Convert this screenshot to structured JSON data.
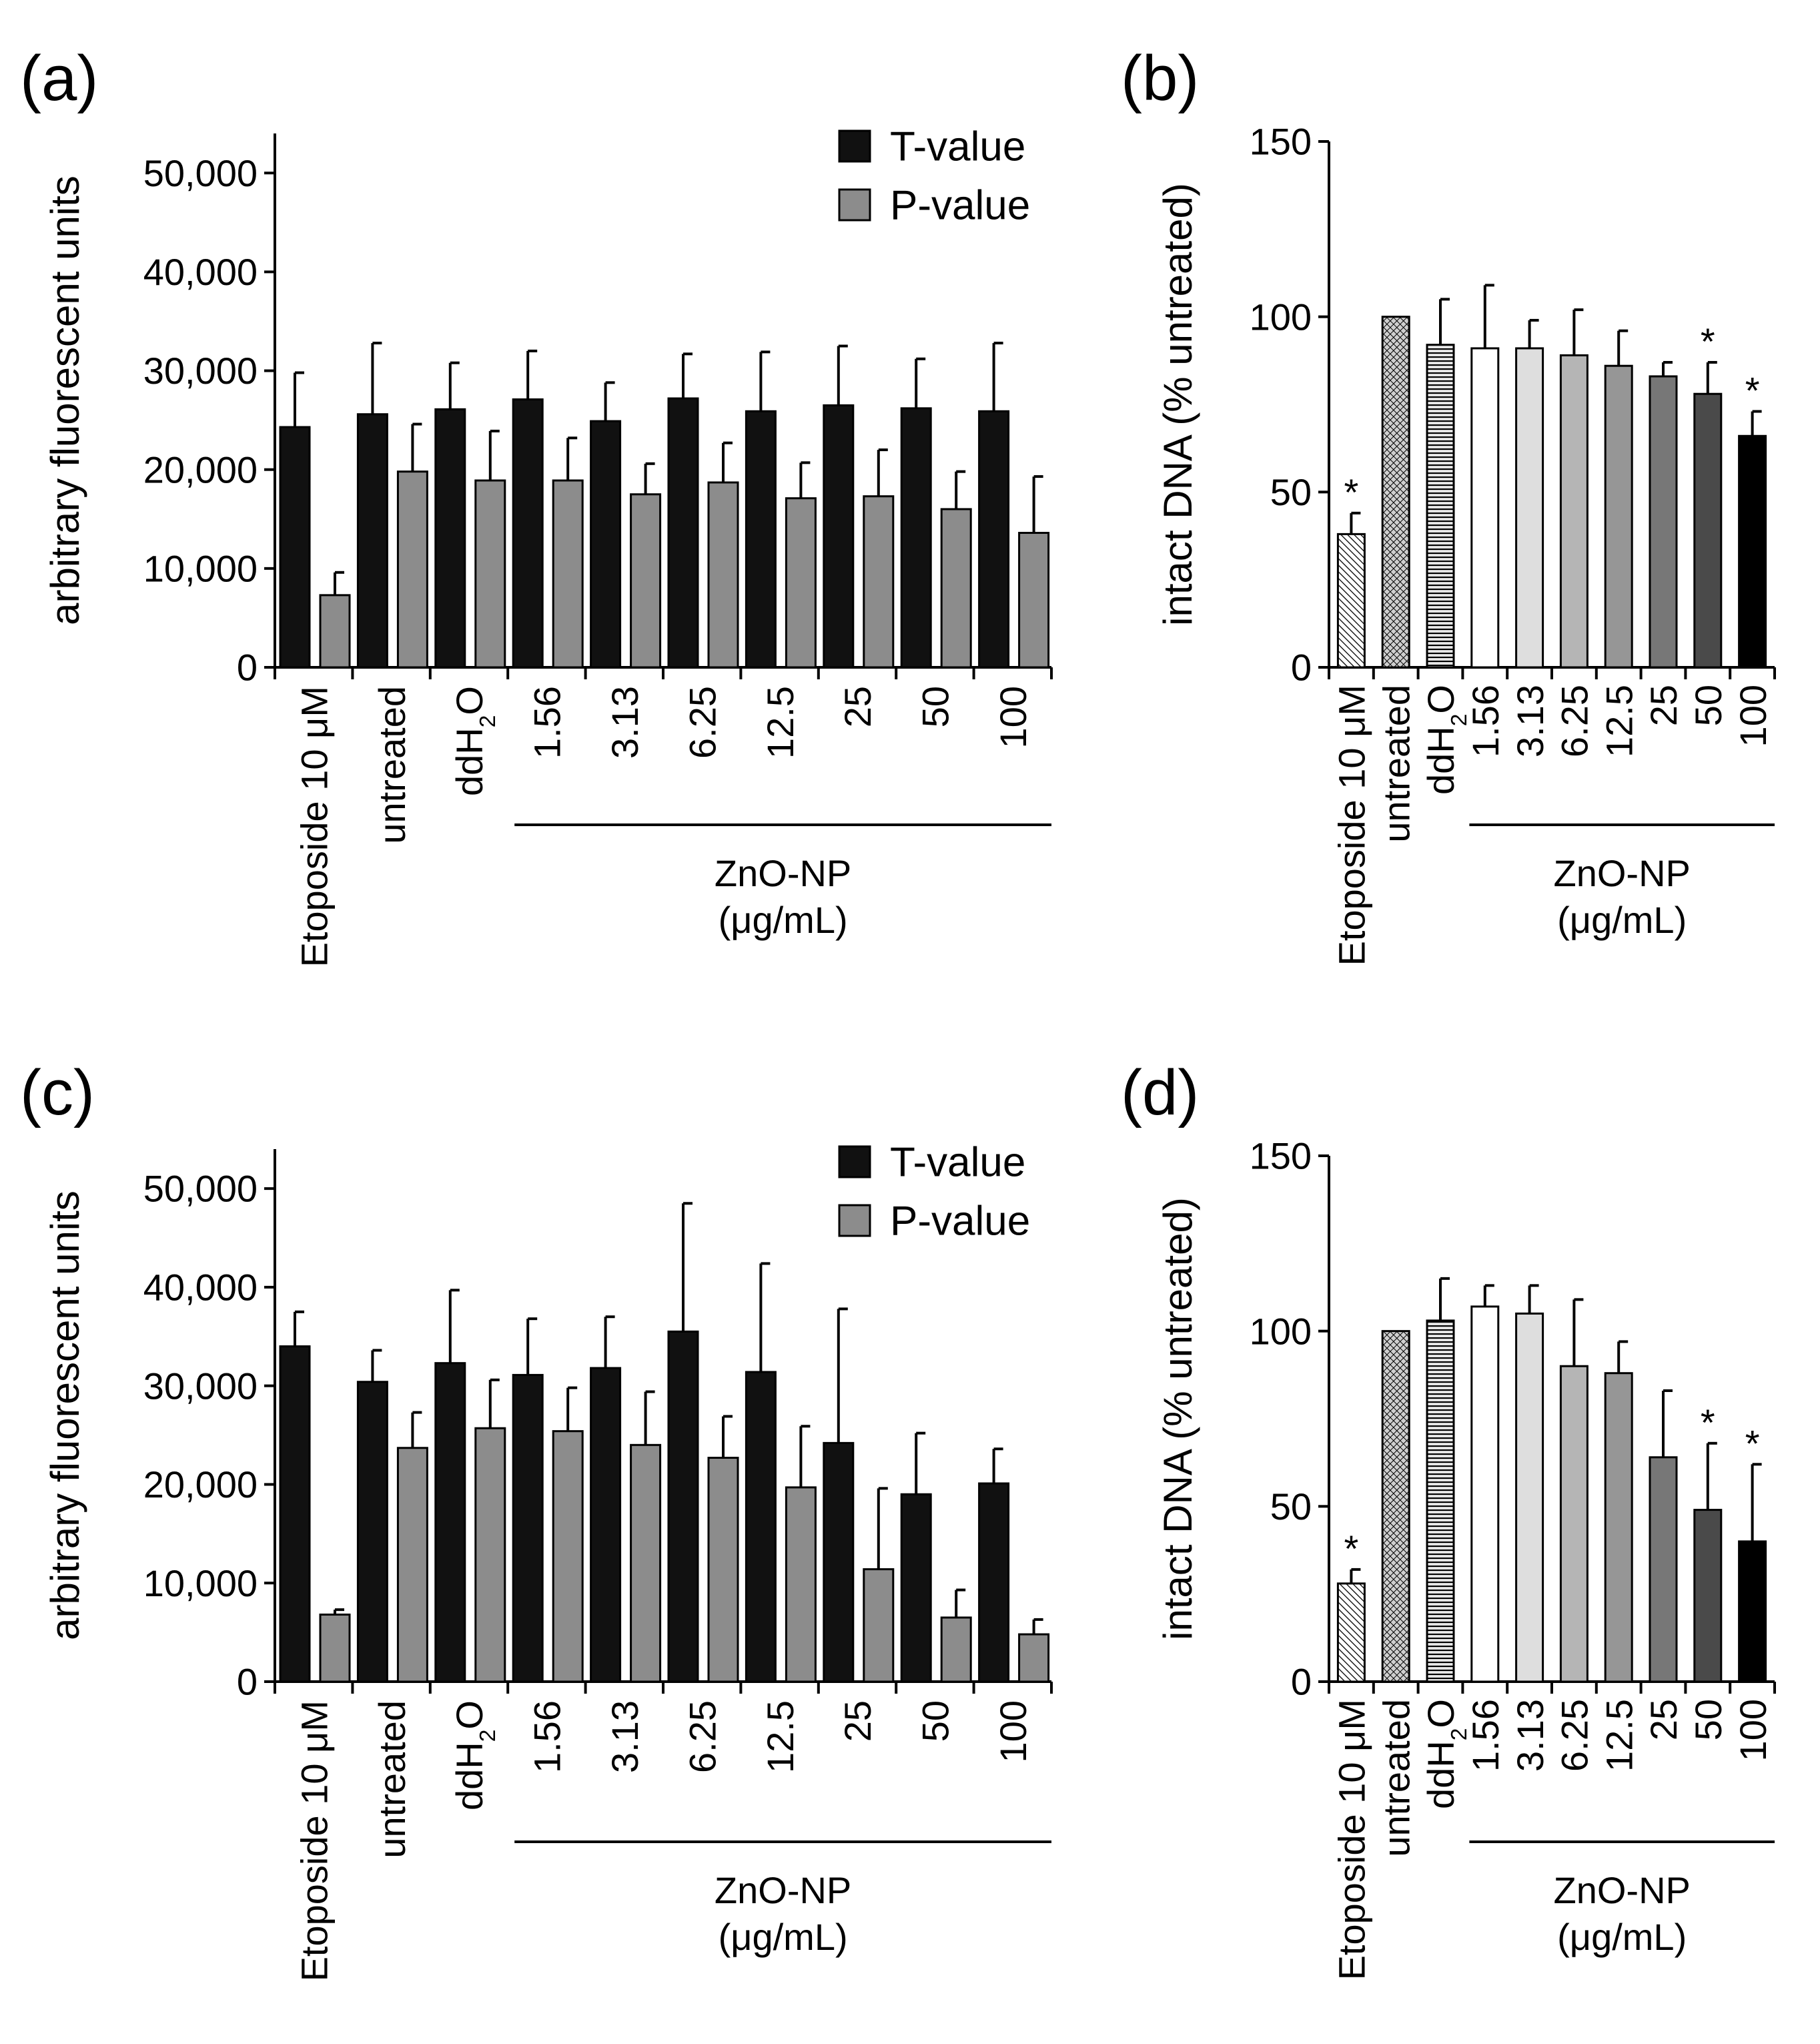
{
  "figure": {
    "group_title": "ZnO-NP",
    "group_unit": "(μg/mL)",
    "bar_colors": {
      "t_value": "#111111",
      "p_value": "#8c8c8c",
      "conc_ramp": [
        "#ffffff",
        "#dedede",
        "#b5b5b5",
        "#969696",
        "#777777",
        "#4a4a4a",
        "#000000"
      ],
      "untreated": "#cfcfcf",
      "ddh2o": "#e6e6e6"
    }
  },
  "chart_data": [
    {
      "panel": "a",
      "label": "(a)",
      "type": "bar",
      "ylabel": "arbitrary fluorescent units",
      "ylim": [
        0,
        54000
      ],
      "yticks": [
        0,
        10000,
        20000,
        30000,
        40000,
        50000
      ],
      "ytick_labels": [
        "0",
        "10,000",
        "20,000",
        "30,000",
        "40,000",
        "50,000"
      ],
      "categories": [
        "Etoposide 10 μM",
        "untreated",
        "ddH2O",
        "1.56",
        "3.13",
        "6.25",
        "12.5",
        "25",
        "50",
        "100"
      ],
      "legend": {
        "position": "top-right",
        "entries": [
          "T-value",
          "P-value"
        ]
      },
      "series": [
        {
          "name": "T-value",
          "values": [
            24300,
            25600,
            26100,
            27100,
            24900,
            27200,
            25900,
            26500,
            26200,
            25900
          ],
          "errors": [
            5500,
            7200,
            4700,
            4900,
            3900,
            4500,
            6000,
            6000,
            5000,
            6900
          ]
        },
        {
          "name": "P-value",
          "values": [
            7300,
            19800,
            18900,
            18900,
            17500,
            18700,
            17100,
            17300,
            16000,
            13600
          ],
          "errors": [
            2300,
            4800,
            5000,
            4300,
            3100,
            4000,
            3600,
            4700,
            3800,
            5700
          ]
        }
      ]
    },
    {
      "panel": "b",
      "label": "(b)",
      "type": "bar",
      "ylabel": "intact DNA (% untreated)",
      "ylim": [
        0,
        150
      ],
      "yticks": [
        0,
        50,
        100,
        150
      ],
      "ytick_labels": [
        "0",
        "50",
        "100",
        "150"
      ],
      "categories": [
        "Etoposide 10 μM",
        "untreated",
        "ddH2O",
        "1.56",
        "3.13",
        "6.25",
        "12.5",
        "25",
        "50",
        "100"
      ],
      "values": [
        38,
        100,
        92,
        91,
        91,
        89,
        86,
        83,
        78,
        66
      ],
      "errors": [
        6,
        0,
        13,
        18,
        8,
        13,
        10,
        4,
        9,
        7
      ],
      "significant": [
        true,
        false,
        false,
        false,
        false,
        false,
        false,
        false,
        true,
        true
      ],
      "significance_marker": "*"
    },
    {
      "panel": "c",
      "label": "(c)",
      "type": "bar",
      "ylabel": "arbitrary fluorescent units",
      "ylim": [
        0,
        54000
      ],
      "yticks": [
        0,
        10000,
        20000,
        30000,
        40000,
        50000
      ],
      "ytick_labels": [
        "0",
        "10,000",
        "20,000",
        "30,000",
        "40,000",
        "50,000"
      ],
      "categories": [
        "Etoposide 10 μM",
        "untreated",
        "ddH2O",
        "1.56",
        "3.13",
        "6.25",
        "12.5",
        "25",
        "50",
        "100"
      ],
      "legend": {
        "position": "top-right",
        "entries": [
          "T-value",
          "P-value"
        ]
      },
      "series": [
        {
          "name": "T-value",
          "values": [
            34000,
            30400,
            32300,
            31100,
            31800,
            35500,
            31400,
            24200,
            19000,
            20100
          ],
          "errors": [
            3500,
            3200,
            7400,
            5700,
            5200,
            13000,
            11000,
            13600,
            6200,
            3500
          ]
        },
        {
          "name": "P-value",
          "values": [
            6800,
            23700,
            25700,
            25400,
            24000,
            22700,
            19700,
            11400,
            6500,
            4800
          ],
          "errors": [
            500,
            3600,
            4900,
            4400,
            5400,
            4200,
            6200,
            8200,
            2800,
            1500
          ]
        }
      ]
    },
    {
      "panel": "d",
      "label": "(d)",
      "type": "bar",
      "ylabel": "intact DNA (% untreated)",
      "ylim": [
        0,
        150
      ],
      "yticks": [
        0,
        50,
        100,
        150
      ],
      "ytick_labels": [
        "0",
        "50",
        "100",
        "150"
      ],
      "categories": [
        "Etoposide 10 μM",
        "untreated",
        "ddH2O",
        "1.56",
        "3.13",
        "6.25",
        "12.5",
        "25",
        "50",
        "100"
      ],
      "values": [
        28,
        100,
        103,
        107,
        105,
        90,
        88,
        64,
        49,
        40
      ],
      "errors": [
        4,
        0,
        12,
        6,
        8,
        19,
        9,
        19,
        19,
        22
      ],
      "significant": [
        true,
        false,
        false,
        false,
        false,
        false,
        false,
        false,
        true,
        true
      ],
      "significance_marker": "*"
    }
  ]
}
